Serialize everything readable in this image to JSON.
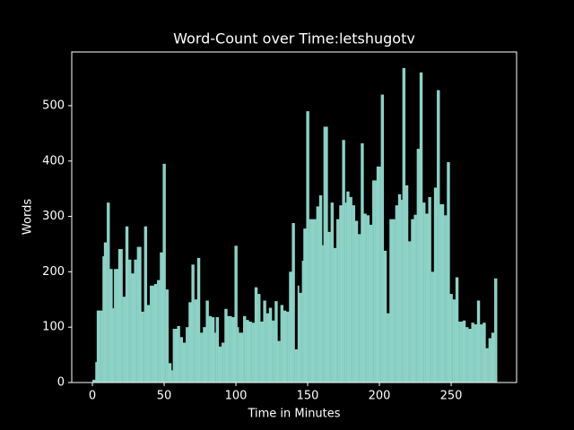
{
  "chart_data": {
    "type": "bar",
    "title": "Word-Count over Time:letshugotv",
    "x_label": "Time in Minutes",
    "y_label": "Words",
    "color": "#8dd3c7",
    "background": "#000000",
    "x": [
      0,
      1,
      2,
      3,
      4,
      5,
      6,
      7,
      8,
      9,
      10,
      11,
      12,
      13,
      14,
      15,
      16,
      17,
      18,
      19,
      20,
      21,
      22,
      23,
      24,
      25,
      26,
      27,
      28,
      29,
      30,
      31,
      32,
      33,
      34,
      35,
      36,
      37,
      38,
      39,
      40,
      41,
      42,
      43,
      44,
      45,
      46,
      47,
      48,
      49,
      50,
      51,
      52,
      53,
      54,
      55,
      56,
      57,
      58,
      59,
      60,
      61,
      62,
      63,
      64,
      65,
      66,
      67,
      68,
      69,
      70,
      71,
      72,
      73,
      74,
      75,
      76,
      77,
      78,
      79,
      80,
      81,
      82,
      83,
      84,
      85,
      86,
      87,
      88,
      89,
      90,
      91,
      92,
      93,
      94,
      95,
      96,
      97,
      98,
      99,
      100,
      101,
      102,
      103,
      104,
      105,
      106,
      107,
      108,
      109,
      110,
      111,
      112,
      113,
      114,
      115,
      116,
      117,
      118,
      119,
      120,
      121,
      122,
      123,
      124,
      125,
      126,
      127,
      128,
      129,
      130,
      131,
      132,
      133,
      134,
      135,
      136,
      137,
      138,
      139,
      140,
      141,
      142,
      143,
      144,
      145,
      146,
      147,
      148,
      149,
      150,
      151,
      152,
      153,
      154,
      155,
      156,
      157,
      158,
      159,
      160,
      161,
      162,
      163,
      164,
      165,
      166,
      167,
      168,
      169,
      170,
      171,
      172,
      173,
      174,
      175,
      176,
      177,
      178,
      179,
      180,
      181,
      182,
      183,
      184,
      185,
      186,
      187,
      188,
      189,
      190,
      191,
      192,
      193,
      194,
      195,
      196,
      197,
      198,
      199,
      200,
      201,
      202,
      203,
      204,
      205,
      206,
      207,
      208,
      209,
      210,
      211,
      212,
      213,
      214,
      215,
      216,
      217,
      218,
      219,
      220,
      221,
      222,
      223,
      224,
      225,
      226,
      227,
      228,
      229,
      230,
      231,
      232,
      233,
      234,
      235,
      236,
      237,
      238,
      239,
      240,
      241,
      242,
      243,
      244,
      245,
      246,
      247,
      248,
      249,
      250,
      251,
      252,
      253,
      254,
      255,
      256,
      257,
      258,
      259,
      260,
      261,
      262,
      263,
      264,
      265,
      266,
      267,
      268,
      269,
      270,
      271,
      272,
      273,
      274,
      275,
      276,
      277,
      278,
      279,
      280,
      281
    ],
    "values": [
      5,
      5,
      37,
      130,
      130,
      130,
      130,
      228,
      253,
      253,
      325,
      325,
      205,
      205,
      134,
      205,
      205,
      205,
      241,
      241,
      241,
      155,
      155,
      282,
      282,
      222,
      222,
      197,
      197,
      222,
      222,
      245,
      245,
      245,
      128,
      128,
      282,
      282,
      140,
      140,
      175,
      175,
      175,
      178,
      178,
      185,
      185,
      235,
      235,
      395,
      395,
      168,
      168,
      35,
      35,
      22,
      97,
      97,
      97,
      102,
      102,
      82,
      82,
      72,
      72,
      100,
      100,
      145,
      145,
      213,
      213,
      150,
      150,
      225,
      225,
      90,
      90,
      100,
      100,
      148,
      148,
      120,
      120,
      118,
      118,
      90,
      118,
      118,
      65,
      65,
      72,
      72,
      133,
      133,
      120,
      120,
      120,
      118,
      118,
      247,
      247,
      100,
      90,
      90,
      90,
      120,
      120,
      113,
      113,
      110,
      110,
      108,
      108,
      172,
      172,
      160,
      160,
      110,
      110,
      148,
      148,
      125,
      125,
      135,
      135,
      112,
      112,
      147,
      147,
      75,
      75,
      140,
      140,
      130,
      130,
      128,
      128,
      200,
      200,
      288,
      288,
      60,
      60,
      175,
      162,
      162,
      220,
      278,
      278,
      490,
      490,
      295,
      295,
      295,
      295,
      295,
      318,
      318,
      338,
      338,
      248,
      462,
      462,
      462,
      272,
      272,
      325,
      325,
      243,
      243,
      295,
      295,
      320,
      320,
      438,
      438,
      325,
      345,
      345,
      335,
      335,
      320,
      320,
      292,
      292,
      268,
      268,
      432,
      432,
      305,
      305,
      302,
      302,
      285,
      285,
      365,
      365,
      365,
      390,
      390,
      390,
      520,
      520,
      238,
      238,
      125,
      125,
      295,
      295,
      295,
      295,
      320,
      320,
      340,
      340,
      330,
      568,
      568,
      356,
      356,
      255,
      255,
      295,
      295,
      303,
      303,
      422,
      422,
      560,
      560,
      325,
      325,
      305,
      305,
      335,
      335,
      200,
      200,
      352,
      352,
      528,
      528,
      322,
      322,
      322,
      302,
      302,
      398,
      398,
      160,
      160,
      150,
      150,
      190,
      190,
      110,
      110,
      110,
      112,
      112,
      100,
      100,
      97,
      97,
      108,
      108,
      105,
      105,
      148,
      148,
      105,
      105,
      108,
      108,
      62,
      62,
      80,
      80,
      90,
      90,
      188,
      188
    ],
    "xlim": [
      -14.4,
      295.6
    ],
    "ylim": [
      0,
      597
    ],
    "xticks": [
      0,
      50,
      100,
      150,
      200,
      250
    ],
    "yticks": [
      0,
      100,
      200,
      300,
      400,
      500
    ]
  }
}
